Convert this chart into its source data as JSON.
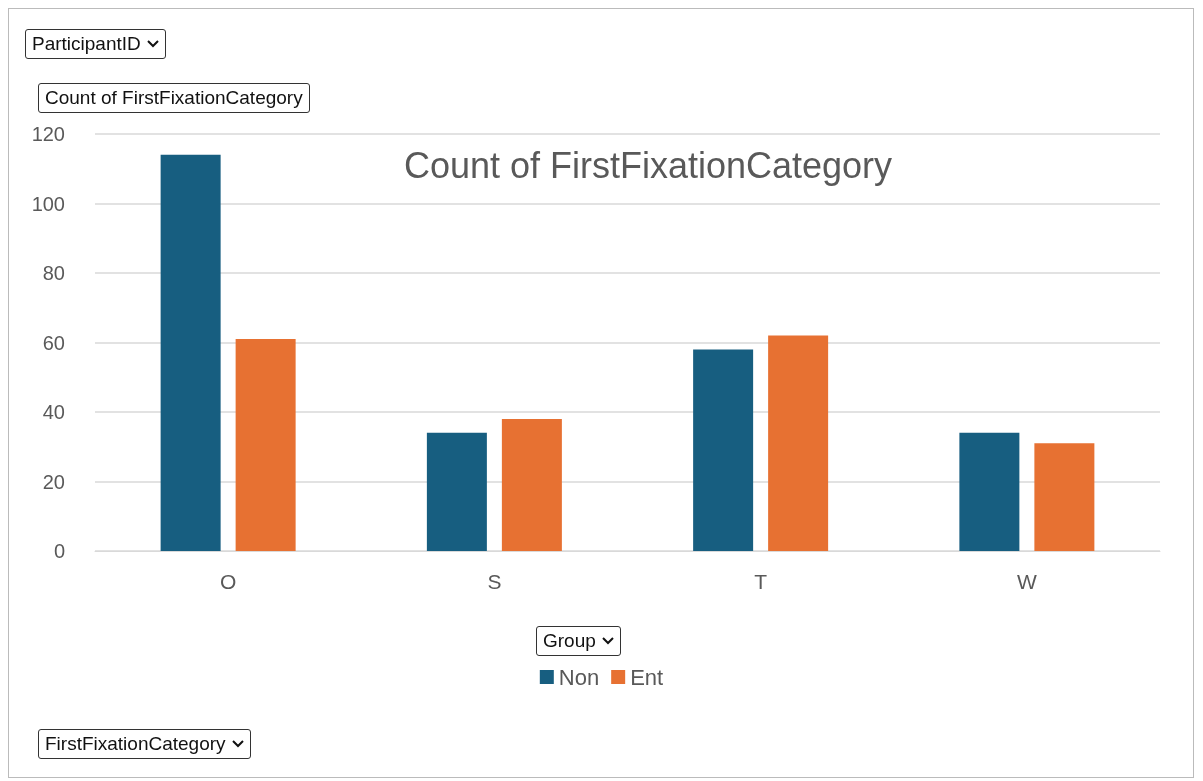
{
  "chart_data": {
    "type": "bar",
    "title": "Count of FirstFixationCategory",
    "ylabel": "Count of FirstFixationCategory",
    "legend_title": "Group",
    "annotations": [
      "ParticipantID",
      "FirstFixationCategory"
    ],
    "categories": [
      "O",
      "S",
      "T",
      "W"
    ],
    "series": [
      {
        "name": "Non",
        "color": "#175e80",
        "values": [
          114,
          34,
          58,
          34
        ]
      },
      {
        "name": "Ent",
        "color": "#e77132",
        "values": [
          61,
          38,
          62,
          31
        ]
      }
    ],
    "ylim": [
      0,
      120
    ],
    "yticks": [
      0,
      20,
      40,
      60,
      80,
      100,
      120
    ],
    "grid": "y",
    "legend": "bottom"
  }
}
